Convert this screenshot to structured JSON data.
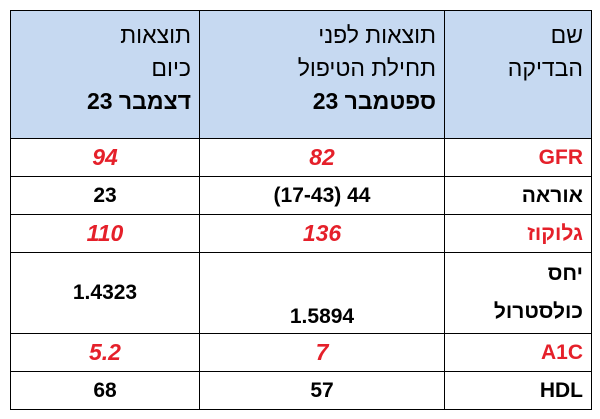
{
  "table": {
    "header": [
      [
        "שם",
        "הבדיקה"
      ],
      [
        "תוצאות לפני",
        "תחילת הטיפול",
        "ספטמבר 23"
      ],
      [
        "תוצאות",
        "כיום",
        "דצמבר 23"
      ]
    ],
    "rows": [
      {
        "cells": [
          "GFR",
          "82",
          "94"
        ],
        "highlight": true
      },
      {
        "cells": [
          "אוראה",
          "44 (17-43)",
          "23"
        ],
        "highlight": false
      },
      {
        "cells": [
          "גלוקוז",
          "136",
          "110"
        ],
        "highlight": true
      },
      {
        "cells": [
          "יחס כולסטרול",
          "1.5894",
          "1.4323"
        ],
        "highlight": false
      },
      {
        "cells": [
          "A1C",
          "7",
          "5.2"
        ],
        "highlight": true
      },
      {
        "cells": [
          "HDL",
          "57",
          "68"
        ],
        "highlight": false
      }
    ]
  }
}
